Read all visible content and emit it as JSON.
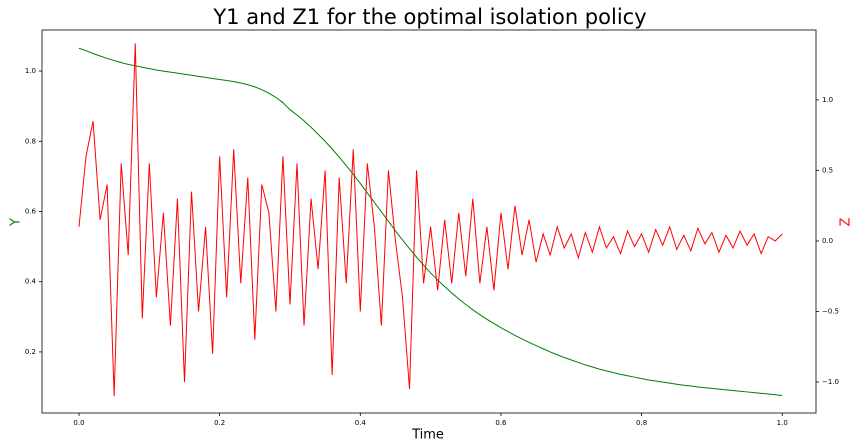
{
  "chart_data": {
    "type": "line",
    "title": "Y1 and Z1 for the optimal isolation policy",
    "xlabel": "Time",
    "ylabel": "Y",
    "y2label": "Z",
    "x": [
      0,
      0.01,
      0.02,
      0.03,
      0.04,
      0.05,
      0.06,
      0.07,
      0.08,
      0.09,
      0.1,
      0.11,
      0.12,
      0.13,
      0.14,
      0.15,
      0.16,
      0.17,
      0.18,
      0.19,
      0.2,
      0.21,
      0.22,
      0.23,
      0.24,
      0.25,
      0.26,
      0.27,
      0.28,
      0.29,
      0.3,
      0.31,
      0.32,
      0.33,
      0.34,
      0.35,
      0.36,
      0.37,
      0.38,
      0.39,
      0.4,
      0.41,
      0.42,
      0.43,
      0.44,
      0.45,
      0.46,
      0.47,
      0.48,
      0.49,
      0.5,
      0.51,
      0.52,
      0.53,
      0.54,
      0.55,
      0.56,
      0.57,
      0.58,
      0.59,
      0.6,
      0.61,
      0.62,
      0.63,
      0.64,
      0.65,
      0.66,
      0.67,
      0.68,
      0.69,
      0.7,
      0.71,
      0.72,
      0.73,
      0.74,
      0.75,
      0.76,
      0.77,
      0.78,
      0.79,
      0.8,
      0.81,
      0.82,
      0.83,
      0.84,
      0.85,
      0.86,
      0.87,
      0.88,
      0.89,
      0.9,
      0.91,
      0.92,
      0.93,
      0.94,
      0.95,
      0.96,
      0.97,
      0.98,
      0.99,
      1
    ],
    "series": [
      {
        "name": "Y",
        "color": "#008000",
        "values": [
          1.065,
          1.058,
          1.05,
          1.043,
          1.036,
          1.03,
          1.024,
          1.019,
          1.015,
          1.011,
          1.007,
          1.003,
          1.0,
          0.997,
          0.994,
          0.991,
          0.988,
          0.985,
          0.982,
          0.979,
          0.976,
          0.973,
          0.97,
          0.966,
          0.961,
          0.955,
          0.947,
          0.937,
          0.925,
          0.91,
          0.89,
          0.875,
          0.858,
          0.84,
          0.82,
          0.8,
          0.778,
          0.755,
          0.731,
          0.706,
          0.68,
          0.653,
          0.626,
          0.599,
          0.572,
          0.545,
          0.519,
          0.494,
          0.47,
          0.447,
          0.425,
          0.405,
          0.386,
          0.368,
          0.351,
          0.335,
          0.32,
          0.306,
          0.293,
          0.281,
          0.269,
          0.258,
          0.247,
          0.237,
          0.227,
          0.218,
          0.209,
          0.2,
          0.192,
          0.184,
          0.177,
          0.17,
          0.163,
          0.157,
          0.151,
          0.146,
          0.141,
          0.136,
          0.132,
          0.128,
          0.124,
          0.12,
          0.117,
          0.114,
          0.111,
          0.108,
          0.105,
          0.103,
          0.1,
          0.098,
          0.096,
          0.094,
          0.092,
          0.09,
          0.088,
          0.086,
          0.084,
          0.082,
          0.08,
          0.078,
          0.076
        ]
      },
      {
        "name": "Z",
        "color": "#ff0000",
        "axis": "y2",
        "values": [
          0.1,
          0.6,
          0.85,
          0.15,
          0.4,
          -1.1,
          0.55,
          -0.1,
          1.4,
          -0.55,
          0.55,
          -0.4,
          0.2,
          -0.6,
          0.3,
          -1.0,
          0.35,
          -0.5,
          0.1,
          -0.8,
          0.6,
          -0.4,
          0.65,
          -0.3,
          0.45,
          -0.7,
          0.4,
          0.2,
          -0.5,
          0.6,
          -0.45,
          0.55,
          -0.6,
          0.3,
          -0.2,
          0.5,
          -0.95,
          0.45,
          -0.3,
          0.65,
          -0.5,
          0.55,
          0.1,
          -0.6,
          0.5,
          0.0,
          -0.4,
          -1.05,
          0.5,
          -0.3,
          0.1,
          -0.35,
          0.15,
          -0.3,
          0.2,
          -0.25,
          0.3,
          -0.3,
          0.1,
          -0.35,
          0.2,
          -0.2,
          0.25,
          -0.1,
          0.15,
          -0.15,
          0.05,
          -0.1,
          0.1,
          -0.05,
          0.05,
          -0.12,
          0.06,
          -0.08,
          0.1,
          -0.05,
          0.03,
          -0.09,
          0.07,
          -0.04,
          0.05,
          -0.08,
          0.08,
          -0.03,
          0.1,
          -0.06,
          0.04,
          -0.07,
          0.09,
          -0.02,
          0.06,
          -0.08,
          0.04,
          -0.05,
          0.07,
          -0.03,
          0.05,
          -0.09,
          0.03,
          0.0,
          0.05
        ]
      }
    ],
    "xlim": [
      -0.0526,
      1.048
    ],
    "xticks": [
      {
        "value": 0,
        "label": "0.0"
      },
      0.2,
      0.4,
      0.6,
      0.8,
      {
        "value": 1,
        "label": "1.0"
      }
    ],
    "ylim": [
      0.026,
      1.117
    ],
    "yticks": [
      0.2,
      0.4,
      0.6,
      0.8,
      {
        "value": 1,
        "label": "1.0"
      }
    ],
    "y2lim": [
      -1.22,
      1.496
    ],
    "y2ticks": [
      {
        "value": -1,
        "label": "−1.0"
      },
      {
        "value": -0.5,
        "label": "−0.5"
      },
      {
        "value": 0,
        "label": "0.0"
      },
      0.5,
      {
        "value": 1,
        "label": "1.0"
      }
    ]
  }
}
